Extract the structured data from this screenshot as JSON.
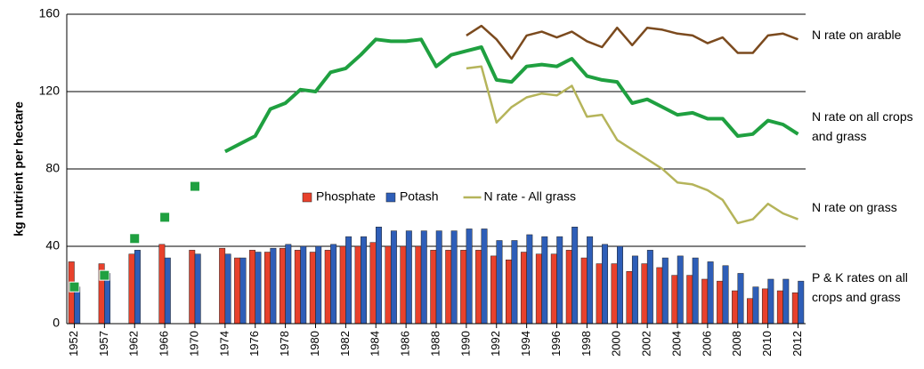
{
  "chart_data": {
    "type": "bar-line",
    "y_axis_label": "kg nutrient per hectare",
    "categories": [
      "1952",
      null,
      "1957",
      null,
      "1962",
      null,
      "1966",
      null,
      "1970",
      null,
      "1974",
      null,
      "1976",
      null,
      "1978",
      null,
      "1980",
      null,
      "1982",
      null,
      "1984",
      null,
      "1986",
      null,
      "1988",
      null,
      "1990",
      null,
      "1992",
      null,
      "1994",
      null,
      "1996",
      null,
      "1998",
      null,
      "2000",
      null,
      "2002",
      null,
      "2004",
      null,
      "2006",
      null,
      "2008",
      null,
      "2010",
      null,
      "2012"
    ],
    "ylim": [
      0,
      160
    ],
    "yticks": [
      0,
      40,
      80,
      120,
      160
    ],
    "grid": true,
    "series": [
      {
        "name": "Phosphate",
        "kind": "bar",
        "color": "#e8412c",
        "values": [
          32,
          null,
          31,
          null,
          36,
          null,
          41,
          null,
          38,
          null,
          39,
          34,
          38,
          37,
          39,
          38,
          37,
          38,
          40,
          40,
          42,
          40,
          40,
          40,
          38,
          38,
          38,
          38,
          35,
          33,
          37,
          36,
          36,
          38,
          34,
          31,
          31,
          27,
          31,
          29,
          25,
          25,
          23,
          22,
          17,
          13,
          18,
          17,
          16
        ]
      },
      {
        "name": "Potash",
        "kind": "bar",
        "color": "#2e5eb8",
        "values": [
          19,
          null,
          26,
          null,
          38,
          null,
          34,
          null,
          36,
          null,
          36,
          34,
          37,
          39,
          41,
          40,
          40,
          41,
          45,
          45,
          50,
          48,
          48,
          48,
          48,
          48,
          49,
          49,
          43,
          43,
          46,
          45,
          45,
          50,
          45,
          41,
          40,
          35,
          38,
          34,
          35,
          34,
          32,
          30,
          26,
          19,
          23,
          23,
          22
        ]
      },
      {
        "name": "N rate - All grass",
        "kind": "line",
        "color": "#b5b45a",
        "values": [
          null,
          null,
          null,
          null,
          null,
          null,
          null,
          null,
          null,
          null,
          null,
          null,
          null,
          null,
          null,
          null,
          null,
          null,
          null,
          null,
          null,
          null,
          null,
          null,
          null,
          null,
          132,
          133,
          104,
          112,
          117,
          119,
          118,
          123,
          107,
          108,
          95,
          90,
          85,
          80,
          73,
          72,
          69,
          64,
          52,
          54,
          62,
          57,
          54
        ]
      },
      {
        "name": "N rate on arable",
        "kind": "line",
        "color": "#7b4a1e",
        "values": [
          null,
          null,
          null,
          null,
          null,
          null,
          null,
          null,
          null,
          null,
          null,
          null,
          null,
          null,
          null,
          null,
          null,
          null,
          null,
          null,
          null,
          null,
          null,
          null,
          null,
          null,
          149,
          154,
          147,
          137,
          149,
          151,
          148,
          151,
          146,
          143,
          153,
          144,
          153,
          152,
          150,
          149,
          145,
          148,
          140,
          140,
          149,
          150,
          147
        ]
      },
      {
        "name": "N rate on all crops and grass",
        "kind": "line",
        "color": "#1fa040",
        "values": [
          19,
          null,
          25,
          null,
          44,
          null,
          55,
          null,
          71,
          null,
          89,
          93,
          97,
          111,
          114,
          121,
          120,
          130,
          132,
          139,
          147,
          146,
          146,
          147,
          133,
          139,
          141,
          143,
          126,
          125,
          133,
          134,
          133,
          137,
          128,
          126,
          125,
          114,
          116,
          112,
          108,
          109,
          106,
          106,
          97,
          98,
          105,
          103,
          98
        ]
      }
    ],
    "legend": {
      "series": [
        0,
        1,
        2
      ]
    },
    "annotations": [
      "N rate on grass",
      "P & K rates on all crops and grass"
    ]
  }
}
